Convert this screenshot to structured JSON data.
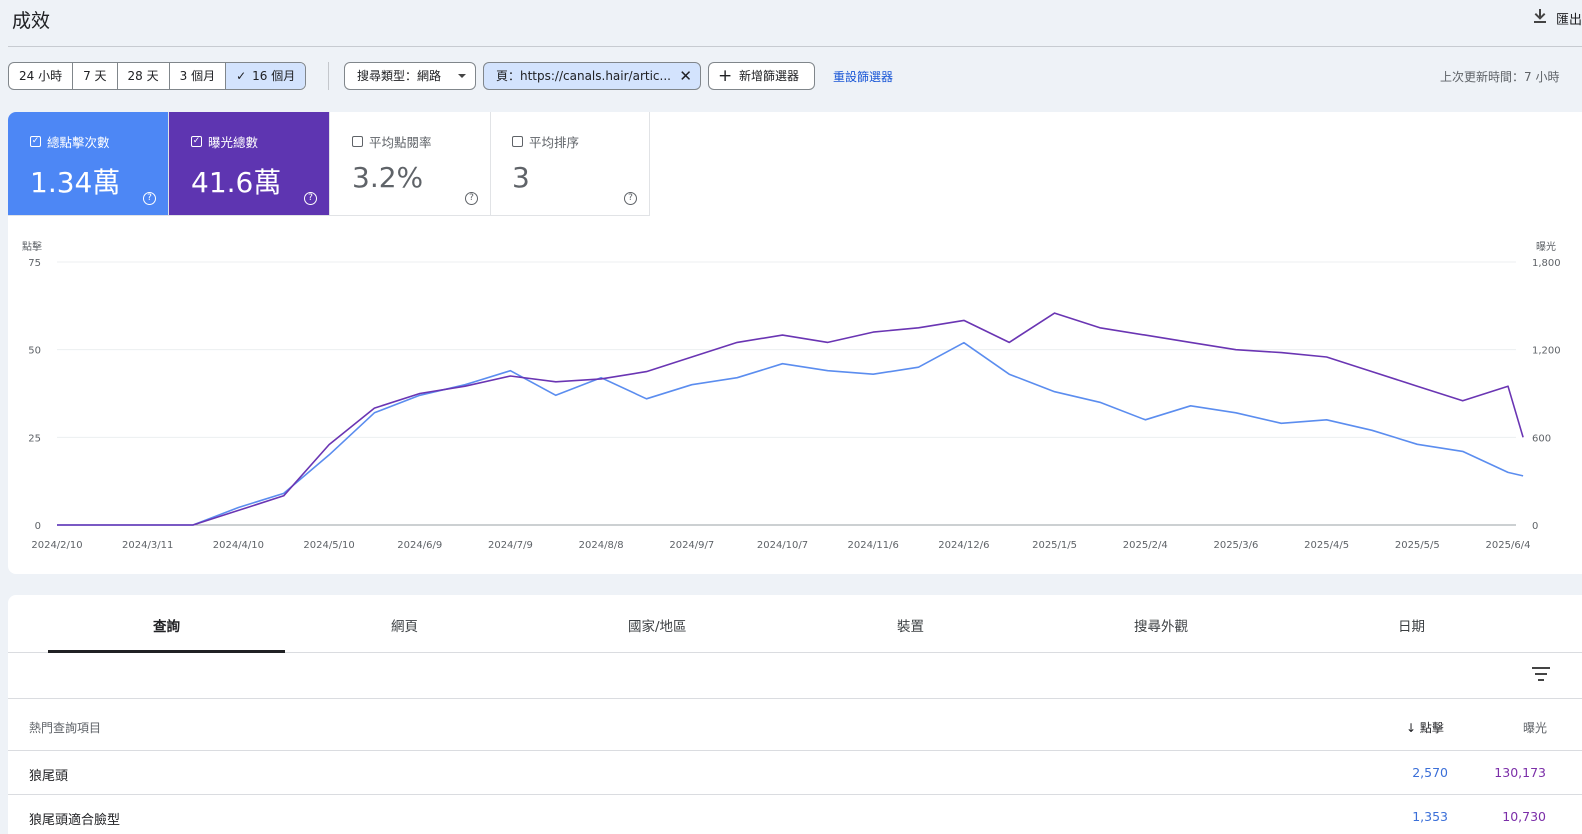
{
  "header": {
    "title": "成效",
    "export_label": "匯出"
  },
  "filters": {
    "ranges": [
      {
        "label": "24 小時",
        "selected": false
      },
      {
        "label": "7 天",
        "selected": false
      },
      {
        "label": "28 天",
        "selected": false
      },
      {
        "label": "3 個月",
        "selected": false
      },
      {
        "label": "16 個月",
        "selected": true
      }
    ],
    "search_type": "搜尋類型：網路",
    "page_filter": "頁：https://canals.hair/artic...",
    "add_filter": "新增篩選器",
    "reset_filters": "重設篩選器",
    "last_updated": "上次更新時間：7 小時"
  },
  "metrics": [
    {
      "label": "總點擊次數",
      "value": "1.34萬",
      "checked": true,
      "color": "#4d87f5"
    },
    {
      "label": "曝光總數",
      "value": "41.6萬",
      "checked": true,
      "color": "#5e35b1"
    },
    {
      "label": "平均點閱率",
      "value": "3.2%",
      "checked": false
    },
    {
      "label": "平均排序",
      "value": "3",
      "checked": false
    }
  ],
  "chart_data": {
    "type": "line",
    "left_axis_label": "點擊",
    "right_axis_label": "曝光",
    "y_left_ticks": [
      "0",
      "25",
      "50",
      "75"
    ],
    "y_right_ticks": [
      "0",
      "600",
      "1,200",
      "1,800"
    ],
    "ylim_left": [
      0,
      75
    ],
    "ylim_right": [
      0,
      1800
    ],
    "grid": true,
    "x_tick_labels": [
      "2024/2/10",
      "2024/3/11",
      "2024/4/10",
      "2024/5/10",
      "2024/6/9",
      "2024/7/9",
      "2024/8/8",
      "2024/9/7",
      "2024/10/7",
      "2024/11/6",
      "2024/12/6",
      "2025/1/5",
      "2025/2/4",
      "2025/3/6",
      "2025/4/5",
      "2025/5/5",
      "2025/6/4"
    ],
    "x": [
      "2024/2/10",
      "2024/3/11",
      "2024/3/26",
      "2024/4/10",
      "2024/4/25",
      "2024/5/10",
      "2024/5/25",
      "2024/6/9",
      "2024/6/24",
      "2024/7/9",
      "2024/7/24",
      "2024/8/8",
      "2024/8/23",
      "2024/9/7",
      "2024/9/22",
      "2024/10/7",
      "2024/10/22",
      "2024/11/6",
      "2024/11/21",
      "2024/12/6",
      "2024/12/21",
      "2025/1/5",
      "2025/1/20",
      "2025/2/4",
      "2025/2/19",
      "2025/3/6",
      "2025/3/21",
      "2025/4/5",
      "2025/4/20",
      "2025/5/5",
      "2025/5/20",
      "2025/6/4",
      "2025/6/9"
    ],
    "series": [
      {
        "name": "總點擊次數",
        "axis": "left",
        "color": "#5b8def",
        "values": [
          0,
          0,
          0,
          5,
          9,
          20,
          32,
          37,
          40,
          44,
          37,
          42,
          36,
          40,
          42,
          46,
          44,
          43,
          45,
          52,
          43,
          38,
          35,
          30,
          34,
          32,
          29,
          30,
          27,
          23,
          21,
          15,
          14
        ]
      },
      {
        "name": "曝光總數",
        "axis": "right",
        "color": "#6a35b3",
        "values": [
          0,
          0,
          0,
          100,
          200,
          550,
          800,
          900,
          950,
          1020,
          980,
          1000,
          1050,
          1150,
          1250,
          1300,
          1250,
          1320,
          1350,
          1400,
          1250,
          1450,
          1350,
          1300,
          1250,
          1200,
          1180,
          1150,
          1050,
          950,
          850,
          950,
          600
        ]
      }
    ]
  },
  "tabs": [
    "查詢",
    "網頁",
    "國家/地區",
    "裝置",
    "搜尋外觀",
    "日期"
  ],
  "table": {
    "col_query": "熱門查詢項目",
    "col_clicks": "點擊",
    "col_impressions": "曝光",
    "rows": [
      {
        "query": "狼尾頭",
        "clicks": "2,570",
        "impressions": "130,173"
      },
      {
        "query": "狼尾頭適合臉型",
        "clicks": "1,353",
        "impressions": "10,730"
      }
    ]
  }
}
